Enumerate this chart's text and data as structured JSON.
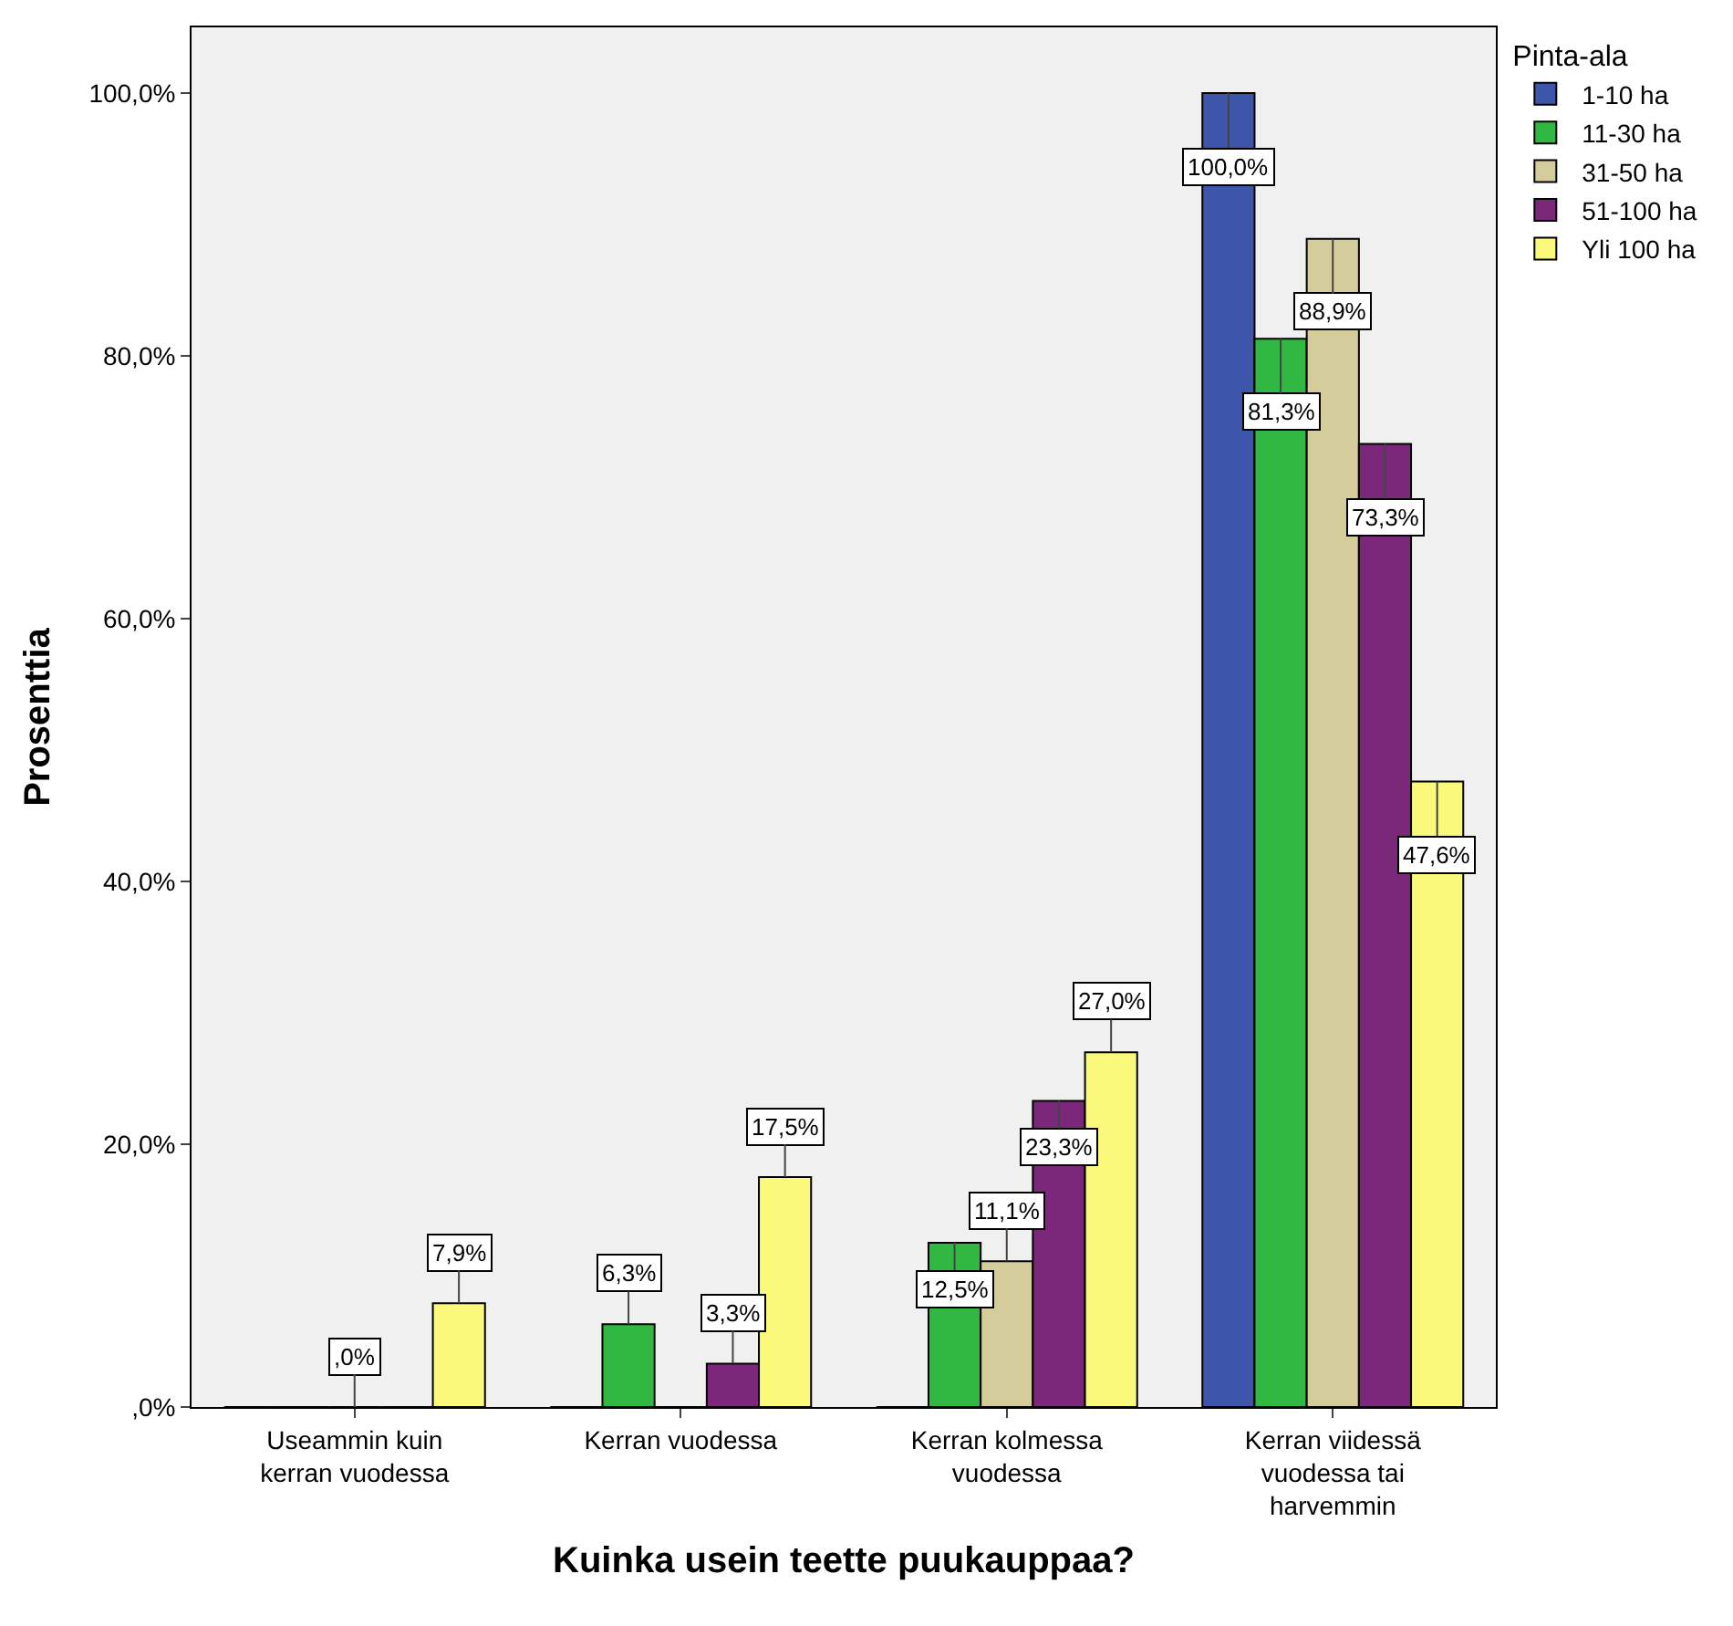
{
  "chart_data": {
    "type": "bar",
    "xlabel": "Kuinka usein teette puukauppaa?",
    "ylabel": "Prosenttia",
    "legend_title": "Pinta-ala",
    "legend": "top right",
    "grid": false,
    "categories": [
      "Useammin kuin\nkerran vuodessa",
      "Kerran vuodessa",
      "Kerran kolmessa\nvuodessa",
      "Kerran viidessä\nvuodessa tai\nharvemmin"
    ],
    "ylim": [
      0,
      105
    ],
    "yticks": [
      {
        "value": 0,
        "label": ",0%"
      },
      {
        "value": 20,
        "label": "20,0%"
      },
      {
        "value": 40,
        "label": "40,0%"
      },
      {
        "value": 60,
        "label": "60,0%"
      },
      {
        "value": 80,
        "label": "80,0%"
      },
      {
        "value": 100,
        "label": "100,0%"
      }
    ],
    "series": [
      {
        "name": "1-10 ha",
        "color": "#3e56a9",
        "values": [
          0,
          0,
          0,
          100
        ],
        "value_labels": [
          null,
          null,
          null,
          "100,0%"
        ]
      },
      {
        "name": "11-30 ha",
        "color": "#30b843",
        "values": [
          0,
          6.3,
          12.5,
          81.3
        ],
        "value_labels": [
          null,
          "6,3%",
          "12,5%",
          "81,3%"
        ]
      },
      {
        "name": "31-50 ha",
        "color": "#d5cc9b",
        "values": [
          0,
          0,
          11.1,
          88.9
        ],
        "value_labels": [
          ",0%",
          null,
          "11,1%",
          "88,9%"
        ]
      },
      {
        "name": "51-100 ha",
        "color": "#7b287b",
        "values": [
          0,
          3.3,
          23.3,
          73.3
        ],
        "value_labels": [
          null,
          "3,3%",
          "23,3%",
          "73,3%"
        ]
      },
      {
        "name": "Yli 100 ha",
        "color": "#fbf97b",
        "values": [
          7.9,
          17.5,
          27.0,
          47.6
        ],
        "value_labels": [
          "7,9%",
          "17,5%",
          "27,0%",
          "47,6%"
        ]
      }
    ]
  }
}
